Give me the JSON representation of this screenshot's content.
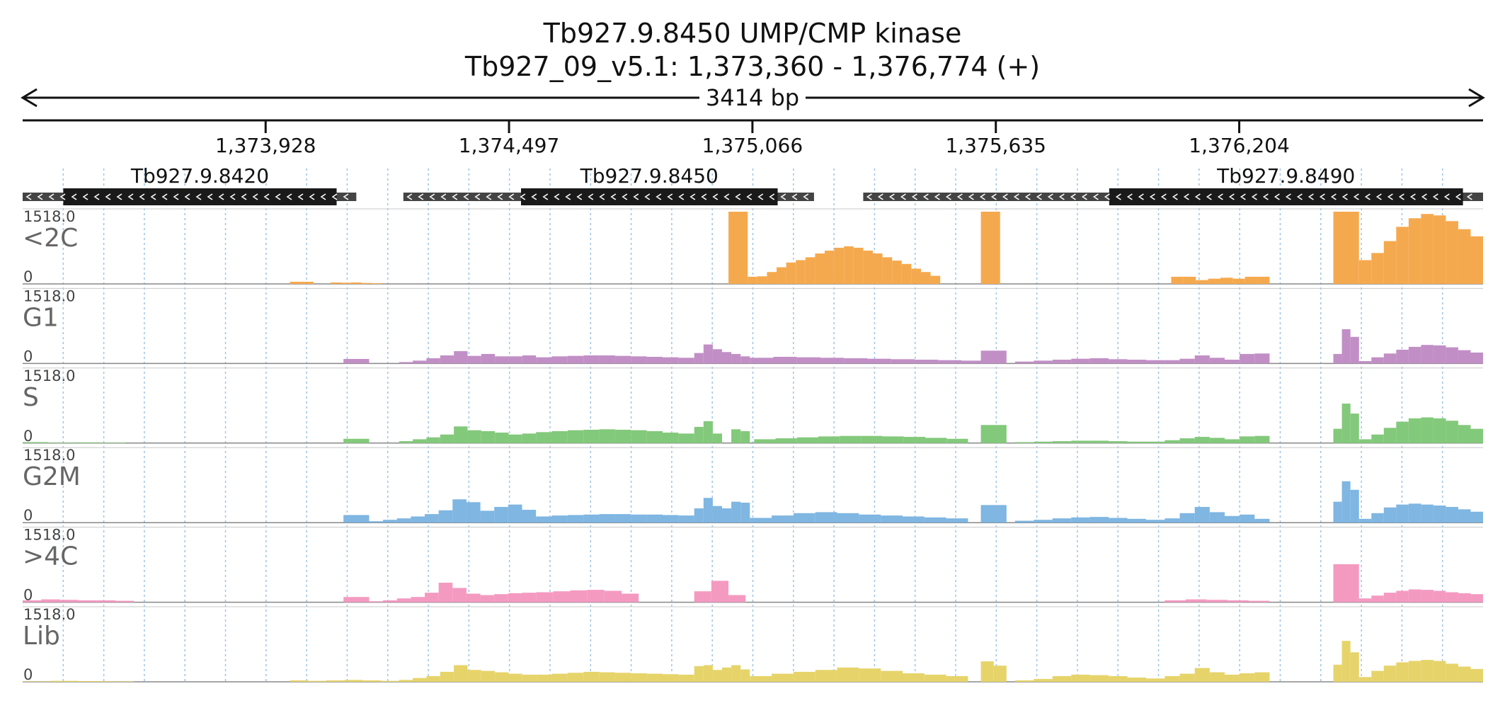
{
  "title": {
    "line1": "Tb927.9.8450  UMP/CMP kinase",
    "line2": "Tb927_09_v5.1: 1,373,360 - 1,376,774 (+)"
  },
  "chart_data": {
    "type": "area",
    "region": {
      "start": 1373360,
      "end": 1376774,
      "length_label": "3414 bp"
    },
    "ticks": [
      {
        "pos": 1373928,
        "label": "1,373,928"
      },
      {
        "pos": 1374497,
        "label": "1,374,497"
      },
      {
        "pos": 1375066,
        "label": "1,375,066"
      },
      {
        "pos": 1375635,
        "label": "1,375,635"
      },
      {
        "pos": 1376204,
        "label": "1,376,204"
      }
    ],
    "genes": [
      {
        "name": "Tb927.9.8420",
        "strand": "-",
        "utr": [
          1373360,
          1374140
        ],
        "cds": [
          1373455,
          1374094
        ]
      },
      {
        "name": "Tb927.9.8450",
        "strand": "-",
        "utr": [
          1374250,
          1375210
        ],
        "cds": [
          1374525,
          1375125
        ]
      },
      {
        "name": "Tb927.9.8490",
        "strand": "-",
        "utr": [
          1375325,
          1376774
        ],
        "cds": [
          1375900,
          1376727
        ]
      }
    ],
    "tracks": [
      {
        "name": "<2C",
        "color": "#f5a94e",
        "ymax_label": "1518.0",
        "ymin_label": "0",
        "ymax": 1518,
        "segments": [
          {
            "start": 1373985,
            "end": 1374040,
            "values": [
              45
            ]
          },
          {
            "start": 1374080,
            "end": 1374200,
            "values": [
              30,
              25,
              30,
              20,
              15
            ]
          },
          {
            "start": 1375010,
            "end": 1375055,
            "values": [
              1518
            ]
          },
          {
            "start": 1375055,
            "end": 1375505,
            "values": [
              150,
              160,
              250,
              350,
              450,
              500,
              560,
              640,
              700,
              760,
              790,
              760,
              700,
              640,
              560,
              490,
              420,
              320,
              250,
              170
            ]
          },
          {
            "start": 1375600,
            "end": 1375645,
            "values": [
              1518
            ]
          },
          {
            "start": 1376045,
            "end": 1376275,
            "values": [
              150,
              150,
              80,
              110,
              130,
              110,
              150,
              150
            ]
          },
          {
            "start": 1376424,
            "end": 1376484,
            "values": [
              1518
            ]
          },
          {
            "start": 1376484,
            "end": 1376774,
            "values": [
              500,
              650,
              900,
              1200,
              1380,
              1470,
              1440,
              1320,
              1150,
              1000
            ]
          }
        ]
      },
      {
        "name": "G1",
        "color": "#c18fc6",
        "ymax_label": "1518.0",
        "ymin_label": "0",
        "ymax": 1518,
        "segments": [
          {
            "start": 1374110,
            "end": 1374170,
            "values": [
              95
            ]
          },
          {
            "start": 1374240,
            "end": 1374560,
            "values": [
              30,
              60,
              110,
              170,
              260,
              160,
              200,
              150,
              150,
              170
            ]
          },
          {
            "start": 1374560,
            "end": 1374930,
            "values": [
              130,
              150,
              160,
              170,
              170,
              160,
              150,
              140,
              130,
              120
            ]
          },
          {
            "start": 1374930,
            "end": 1375060,
            "values": [
              220,
              400,
              300,
              240,
              200,
              150
            ]
          },
          {
            "start": 1375060,
            "end": 1375610,
            "values": [
              120,
              140,
              130,
              120,
              110,
              100,
              90,
              80,
              70,
              60
            ]
          },
          {
            "start": 1375600,
            "end": 1375660,
            "values": [
              270
            ]
          },
          {
            "start": 1375680,
            "end": 1376030,
            "values": [
              40,
              60,
              80,
              100,
              110,
              90,
              80,
              70
            ]
          },
          {
            "start": 1376030,
            "end": 1376275,
            "values": [
              70,
              100,
              170,
              120,
              80,
              200,
              210
            ]
          },
          {
            "start": 1376424,
            "end": 1376484,
            "values": [
              200,
              720,
              560
            ]
          },
          {
            "start": 1376484,
            "end": 1376774,
            "values": [
              50,
              130,
              210,
              290,
              350,
              390,
              380,
              340,
              280,
              230
            ]
          }
        ]
      },
      {
        "name": "S",
        "color": "#83c97b",
        "ymax_label": "1518.0",
        "ymin_label": "0",
        "ymax": 1518,
        "segments": [
          {
            "start": 1373360,
            "end": 1373600,
            "values": [
              20,
              10,
              15,
              10
            ]
          },
          {
            "start": 1374110,
            "end": 1374170,
            "values": [
              90
            ]
          },
          {
            "start": 1374240,
            "end": 1374560,
            "values": [
              40,
              80,
              120,
              180,
              350,
              270,
              250,
              220,
              180,
              200
            ]
          },
          {
            "start": 1374560,
            "end": 1374930,
            "values": [
              230,
              250,
              270,
              280,
              290,
              280,
              270,
              250,
              220,
              200
            ]
          },
          {
            "start": 1374930,
            "end": 1375060,
            "values": [
              340,
              460,
              200,
              0,
              290,
              250
            ]
          },
          {
            "start": 1375070,
            "end": 1375570,
            "values": [
              80,
              100,
              120,
              140,
              150,
              150,
              140,
              130,
              110,
              90
            ]
          },
          {
            "start": 1375600,
            "end": 1375660,
            "values": [
              380
            ]
          },
          {
            "start": 1375680,
            "end": 1376030,
            "values": [
              20,
              30,
              40,
              50,
              50,
              40,
              30,
              30
            ]
          },
          {
            "start": 1376030,
            "end": 1376275,
            "values": [
              60,
              100,
              130,
              110,
              80,
              140,
              150
            ]
          },
          {
            "start": 1376424,
            "end": 1376484,
            "values": [
              300,
              830,
              620
            ]
          },
          {
            "start": 1376484,
            "end": 1376774,
            "values": [
              80,
              180,
              320,
              450,
              520,
              540,
              520,
              470,
              380,
              300
            ]
          }
        ]
      },
      {
        "name": "G2M",
        "color": "#7fb6e2",
        "ymax_label": "1518.0",
        "ymin_label": "0",
        "ymax": 1518,
        "segments": [
          {
            "start": 1374110,
            "end": 1374170,
            "values": [
              160
            ]
          },
          {
            "start": 1374170,
            "end": 1374560,
            "values": [
              30,
              60,
              90,
              130,
              180,
              260,
              490,
              430,
              250,
              330,
              380,
              270
            ]
          },
          {
            "start": 1374560,
            "end": 1374930,
            "values": [
              130,
              150,
              160,
              170,
              180,
              180,
              170,
              170,
              160,
              150
            ]
          },
          {
            "start": 1374930,
            "end": 1375060,
            "values": [
              300,
              520,
              350,
              300,
              440,
              420
            ]
          },
          {
            "start": 1375060,
            "end": 1375570,
            "values": [
              100,
              150,
              200,
              220,
              200,
              170,
              150,
              130,
              110,
              90
            ]
          },
          {
            "start": 1375600,
            "end": 1375660,
            "values": [
              370
            ]
          },
          {
            "start": 1375680,
            "end": 1376030,
            "values": [
              40,
              60,
              90,
              110,
              120,
              100,
              80,
              60
            ]
          },
          {
            "start": 1376030,
            "end": 1376275,
            "values": [
              90,
              200,
              330,
              220,
              140,
              170,
              80
            ]
          },
          {
            "start": 1376424,
            "end": 1376484,
            "values": [
              440,
              870,
              690
            ]
          },
          {
            "start": 1376484,
            "end": 1376774,
            "values": [
              80,
              200,
              320,
              380,
              400,
              380,
              360,
              330,
              280,
              230
            ]
          }
        ]
      },
      {
        "name": ">4C",
        "color": "#f49ac1",
        "ymax_label": "1518.0",
        "ymin_label": "0",
        "ymax": 1518,
        "segments": [
          {
            "start": 1373360,
            "end": 1373620,
            "values": [
              40,
              60,
              50,
              40,
              40,
              30
            ]
          },
          {
            "start": 1374110,
            "end": 1374170,
            "values": [
              110
            ]
          },
          {
            "start": 1374170,
            "end": 1374560,
            "values": [
              20,
              40,
              80,
              110,
              200,
              410,
              300,
              180,
              150,
              170,
              190,
              200
            ]
          },
          {
            "start": 1374560,
            "end": 1374800,
            "values": [
              210,
              230,
              250,
              260,
              240,
              180
            ]
          },
          {
            "start": 1374930,
            "end": 1375050,
            "values": [
              230,
              450,
              150
            ]
          },
          {
            "start": 1376030,
            "end": 1376275,
            "values": [
              40,
              60,
              50,
              40,
              30
            ]
          },
          {
            "start": 1376424,
            "end": 1376484,
            "values": [
              800
            ]
          },
          {
            "start": 1376484,
            "end": 1376774,
            "values": [
              80,
              140,
              200,
              240,
              270,
              260,
              240,
              210,
              190,
              170
            ]
          }
        ]
      },
      {
        "name": "Lib",
        "color": "#e6d46b",
        "ymax_label": "1518.0",
        "ymin_label": "0",
        "ymax": 1518,
        "segments": [
          {
            "start": 1373360,
            "end": 1373620,
            "values": [
              10,
              20,
              15,
              10
            ]
          },
          {
            "start": 1373985,
            "end": 1374240,
            "values": [
              30,
              20,
              30,
              40,
              30,
              20
            ]
          },
          {
            "start": 1374240,
            "end": 1374560,
            "values": [
              40,
              80,
              120,
              210,
              350,
              250,
              230,
              200,
              170,
              150
            ]
          },
          {
            "start": 1374560,
            "end": 1374930,
            "values": [
              150,
              170,
              190,
              210,
              200,
              190,
              180,
              170,
              160,
              150
            ]
          },
          {
            "start": 1374930,
            "end": 1375060,
            "values": [
              330,
              350,
              250,
              300,
              350,
              260
            ]
          },
          {
            "start": 1375060,
            "end": 1375570,
            "values": [
              120,
              170,
              210,
              250,
              300,
              280,
              230,
              180,
              150,
              120
            ]
          },
          {
            "start": 1375600,
            "end": 1375660,
            "values": [
              430,
              340
            ]
          },
          {
            "start": 1375680,
            "end": 1376030,
            "values": [
              30,
              60,
              120,
              150,
              140,
              120,
              90,
              70
            ]
          },
          {
            "start": 1376030,
            "end": 1376275,
            "values": [
              120,
              170,
              290,
              200,
              150,
              180,
              200
            ]
          },
          {
            "start": 1376424,
            "end": 1376484,
            "values": [
              360,
              860,
              620
            ]
          },
          {
            "start": 1376484,
            "end": 1376774,
            "values": [
              100,
              230,
              340,
              410,
              440,
              460,
              440,
              380,
              320,
              270
            ]
          }
        ]
      }
    ]
  }
}
